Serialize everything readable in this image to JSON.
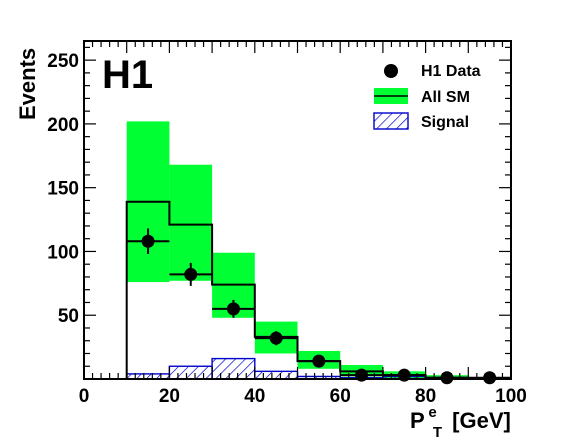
{
  "chart_data": {
    "type": "bar",
    "logo": "H1",
    "ylabel": "Events",
    "xlabel_main": "P",
    "xlabel_sup": "e",
    "xlabel_sub": "T",
    "xlabel_unit": "[GeV]",
    "xlim": [
      0,
      100
    ],
    "ylim": [
      0,
      265
    ],
    "xticks": [
      0,
      20,
      40,
      60,
      80,
      100
    ],
    "yticks": [
      50,
      100,
      150,
      200,
      250
    ],
    "bins": [
      {
        "lo": 10,
        "hi": 20,
        "sm": 139,
        "sm_band": [
          76,
          202
        ],
        "signal": 4
      },
      {
        "lo": 20,
        "hi": 30,
        "sm": 121,
        "sm_band": [
          77,
          168
        ],
        "signal": 10
      },
      {
        "lo": 30,
        "hi": 40,
        "sm": 74,
        "sm_band": [
          48,
          99
        ],
        "signal": 16
      },
      {
        "lo": 40,
        "hi": 50,
        "sm": 33,
        "sm_band": [
          20,
          45
        ],
        "signal": 6
      },
      {
        "lo": 50,
        "hi": 60,
        "sm": 14,
        "sm_band": [
          8,
          22
        ],
        "signal": 2
      },
      {
        "lo": 60,
        "hi": 70,
        "sm": 6,
        "sm_band": [
          2,
          11
        ],
        "signal": 1
      },
      {
        "lo": 70,
        "hi": 80,
        "sm": 3,
        "sm_band": [
          0,
          6
        ],
        "signal": 2
      },
      {
        "lo": 80,
        "hi": 90,
        "sm": 1,
        "sm_band": [
          0,
          3
        ],
        "signal": 0.5
      },
      {
        "lo": 90,
        "hi": 100,
        "sm": 0.5,
        "sm_band": [
          0,
          1.5
        ],
        "signal": 0.2
      }
    ],
    "data_points": [
      {
        "x": 15,
        "y": 108,
        "yerr": 10,
        "xerr": 5
      },
      {
        "x": 25,
        "y": 82,
        "yerr": 9,
        "xerr": 5
      },
      {
        "x": 35,
        "y": 55,
        "yerr": 7,
        "xerr": 5
      },
      {
        "x": 45,
        "y": 32,
        "yerr": 5.5,
        "xerr": 5
      },
      {
        "x": 55,
        "y": 14,
        "yerr": 3.7,
        "xerr": 5
      },
      {
        "x": 65,
        "y": 3,
        "yerr": 1.7,
        "xerr": 5
      },
      {
        "x": 75,
        "y": 3,
        "yerr": 1.7,
        "xerr": 5
      },
      {
        "x": 85,
        "y": 1,
        "yerr": 1,
        "xerr": 5
      },
      {
        "x": 95,
        "y": 1,
        "yerr": 1,
        "xerr": 5
      }
    ],
    "legend": {
      "placement": "top-right",
      "entries": [
        {
          "key": "data",
          "label": "H1 Data"
        },
        {
          "key": "sm",
          "label": "All SM"
        },
        {
          "key": "signal",
          "label": "Signal"
        }
      ]
    },
    "colors": {
      "band": "#00ff33",
      "sm_line": "#000000",
      "signal": "#0000cc",
      "data": "#000000"
    }
  }
}
